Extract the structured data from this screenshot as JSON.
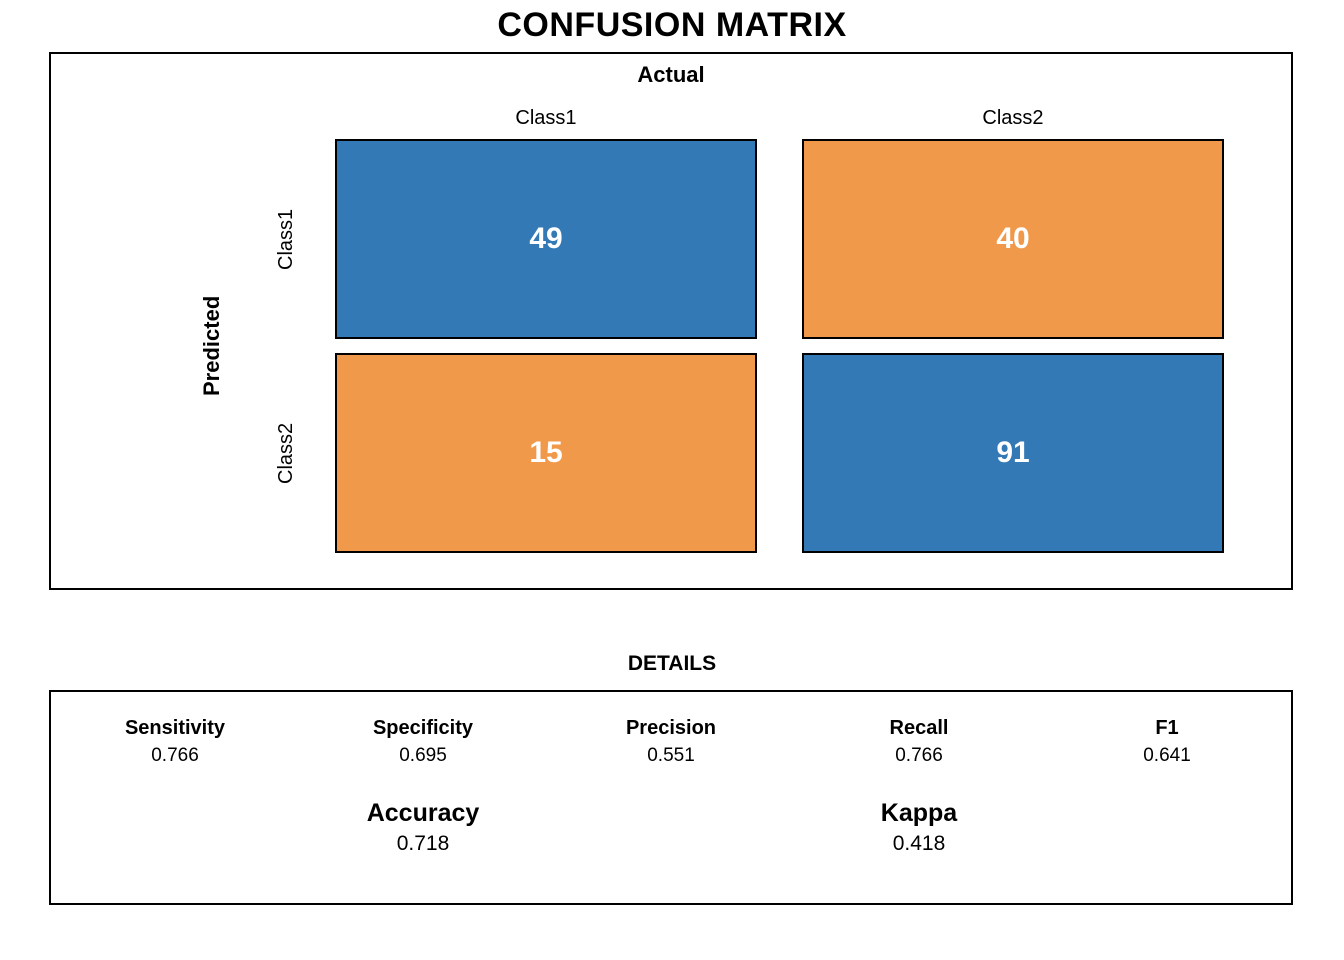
{
  "title": "CONFUSION MATRIX",
  "chart_data": {
    "type": "heatmap",
    "title": "CONFUSION MATRIX",
    "x_axis_label": "Actual",
    "y_axis_label": "Predicted",
    "columns": [
      "Class1",
      "Class2"
    ],
    "rows": [
      "Class1",
      "Class2"
    ],
    "values": [
      [
        49,
        40
      ],
      [
        15,
        91
      ]
    ],
    "cell_colors": {
      "diagonal": "#3379b5",
      "off_diagonal": "#f1994a",
      "cell_text": "#ffffff"
    },
    "details": {
      "title": "DETAILS",
      "metrics": [
        {
          "label": "Sensitivity",
          "value": "0.766"
        },
        {
          "label": "Specificity",
          "value": "0.695"
        },
        {
          "label": "Precision",
          "value": "0.551"
        },
        {
          "label": "Recall",
          "value": "0.766"
        },
        {
          "label": "F1",
          "value": "0.641"
        }
      ],
      "summary": [
        {
          "label": "Accuracy",
          "value": "0.718"
        },
        {
          "label": "Kappa",
          "value": "0.418"
        }
      ]
    }
  }
}
